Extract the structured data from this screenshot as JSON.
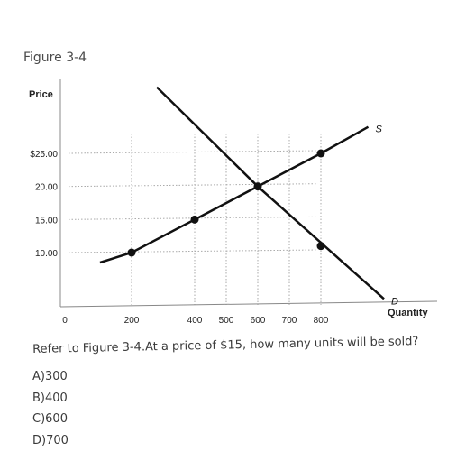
{
  "figure_label": "Figure 3-4",
  "question": "Refer to Figure 3-4.At a price of $15, how many units will be sold?",
  "options": [
    "A)300",
    "B)400",
    "C)600",
    "D)700"
  ],
  "chart_data": {
    "type": "line",
    "xlabel": "Quantity",
    "ylabel": "Price",
    "x_ticks": [
      {
        "value": 0,
        "label": "0"
      },
      {
        "value": 200,
        "label": "200"
      },
      {
        "value": 400,
        "label": "400"
      },
      {
        "value": 500,
        "label": "500"
      },
      {
        "value": 600,
        "label": "600"
      },
      {
        "value": 700,
        "label": "700"
      },
      {
        "value": 800,
        "label": "800"
      }
    ],
    "y_ticks": [
      {
        "value": 10,
        "label": "10.00"
      },
      {
        "value": 15,
        "label": "15.00"
      },
      {
        "value": 20,
        "label": "20.00"
      },
      {
        "value": 25,
        "label": "$25.00"
      }
    ],
    "xlim": [
      0,
      900
    ],
    "ylim": [
      0,
      36
    ],
    "series": [
      {
        "name": "S",
        "points": [
          [
            100,
            8.5
          ],
          [
            200,
            10
          ],
          [
            400,
            15
          ],
          [
            600,
            20
          ],
          [
            800,
            25
          ],
          [
            950,
            29
          ]
        ],
        "markers": [
          [
            200,
            10
          ],
          [
            400,
            15
          ],
          [
            800,
            25
          ]
        ]
      },
      {
        "name": "D",
        "points": [
          [
            280,
            35
          ],
          [
            600,
            20
          ],
          [
            1000,
            3
          ]
        ],
        "markers": [
          [
            800,
            11
          ]
        ]
      }
    ],
    "equilibrium": [
      600,
      20
    ],
    "grid": "dotted"
  }
}
